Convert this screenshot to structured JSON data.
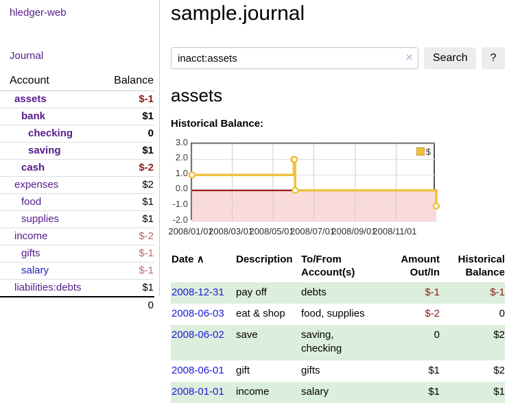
{
  "brand": "hledger-web",
  "nav": {
    "journal": "Journal"
  },
  "colors": {
    "link_purple": "#551a8b",
    "link_blue": "#2222cc",
    "date_link_blue": "#1a1ad6",
    "negative_strong": "#8b1a1a",
    "negative_muted": "#b86a6a",
    "table_stripe_green": "#dceedc",
    "chart_gold": "#edc240",
    "chart_negative_region": "#fbdada",
    "chart_zero_line": "#8b0000"
  },
  "sidebar": {
    "headers": {
      "account": "Account",
      "balance": "Balance"
    },
    "accounts": [
      {
        "name": "assets",
        "balance": "$-1",
        "level": 1,
        "bold": true,
        "neg": true
      },
      {
        "name": "bank",
        "balance": "$1",
        "level": 2,
        "bold": true,
        "neg": false
      },
      {
        "name": "checking",
        "balance": "0",
        "level": 3,
        "bold": true,
        "neg": false
      },
      {
        "name": "saving",
        "balance": "$1",
        "level": 3,
        "bold": true,
        "neg": false
      },
      {
        "name": "cash",
        "balance": "$-2",
        "level": 2,
        "bold": true,
        "neg": true
      },
      {
        "name": "expenses",
        "balance": "$2",
        "level": 1,
        "bold": false,
        "neg": false
      },
      {
        "name": "food",
        "balance": "$1",
        "level": 2,
        "bold": false,
        "neg": false
      },
      {
        "name": "supplies",
        "balance": "$1",
        "level": 2,
        "bold": false,
        "neg": false
      },
      {
        "name": "income",
        "balance": "$-2",
        "level": 1,
        "bold": false,
        "neg": true
      },
      {
        "name": "gifts",
        "balance": "$-1",
        "level": 2,
        "bold": false,
        "neg": true
      },
      {
        "name": "salary",
        "balance": "$-1",
        "level": 2,
        "bold": false,
        "neg": true,
        "unvisited": true
      },
      {
        "name": "liabilities:debts",
        "balance": "$1",
        "level": 1,
        "bold": false,
        "neg": false
      }
    ],
    "total": "0"
  },
  "main": {
    "title": "sample.journal",
    "search": {
      "value": "inacct:assets",
      "clear": "×",
      "button": "Search",
      "help": "?"
    },
    "heading": "assets",
    "chart_title": "Historical Balance:"
  },
  "chart_data": {
    "type": "line",
    "step": true,
    "title": "Historical Balance",
    "series": [
      {
        "name": "$",
        "color": "#edc240",
        "points": [
          [
            "2008-01-01",
            1
          ],
          [
            "2008-06-01",
            2
          ],
          [
            "2008-06-02",
            2
          ],
          [
            "2008-06-03",
            0
          ],
          [
            "2008-12-31",
            -1
          ]
        ]
      }
    ],
    "x_range": [
      "2008-01-01",
      "2008-12-31"
    ],
    "xticks": [
      {
        "date": "2008-01-01",
        "label": "2008/01/01"
      },
      {
        "date": "2008-03-01",
        "label": "2008/03/01"
      },
      {
        "date": "2008-05-01",
        "label": "2008/05/01"
      },
      {
        "date": "2008-07-01",
        "label": "2008/07/01"
      },
      {
        "date": "2008-09-01",
        "label": "2008/09/01"
      },
      {
        "date": "2008-11-01",
        "label": "2008/11/01"
      }
    ],
    "yticks": [
      3.0,
      2.0,
      1.0,
      0.0,
      -1.0,
      -2.0
    ],
    "ylim": [
      -2,
      3
    ],
    "grid": true,
    "legend": {
      "label": "$",
      "position": "top-right"
    }
  },
  "register": {
    "headers": {
      "date": "Date",
      "sort_icon": "∧",
      "description": "Description",
      "tofrom": "To/From Account(s)",
      "amount": "Amount Out/In",
      "balance": "Historical Balance"
    },
    "rows": [
      {
        "date": "2008-12-31",
        "description": "pay off",
        "accounts": "debts",
        "amount": "$-1",
        "amount_neg": true,
        "balance": "$-1",
        "balance_neg": true
      },
      {
        "date": "2008-06-03",
        "description": "eat & shop",
        "accounts": "food, supplies",
        "amount": "$-2",
        "amount_neg": true,
        "balance": "0",
        "balance_neg": false
      },
      {
        "date": "2008-06-02",
        "description": "save",
        "accounts": "saving, checking",
        "amount": "0",
        "amount_neg": false,
        "balance": "$2",
        "balance_neg": false
      },
      {
        "date": "2008-06-01",
        "description": "gift",
        "accounts": "gifts",
        "amount": "$1",
        "amount_neg": false,
        "balance": "$2",
        "balance_neg": false
      },
      {
        "date": "2008-01-01",
        "description": "income",
        "accounts": "salary",
        "amount": "$1",
        "amount_neg": false,
        "balance": "$1",
        "balance_neg": false
      }
    ]
  }
}
